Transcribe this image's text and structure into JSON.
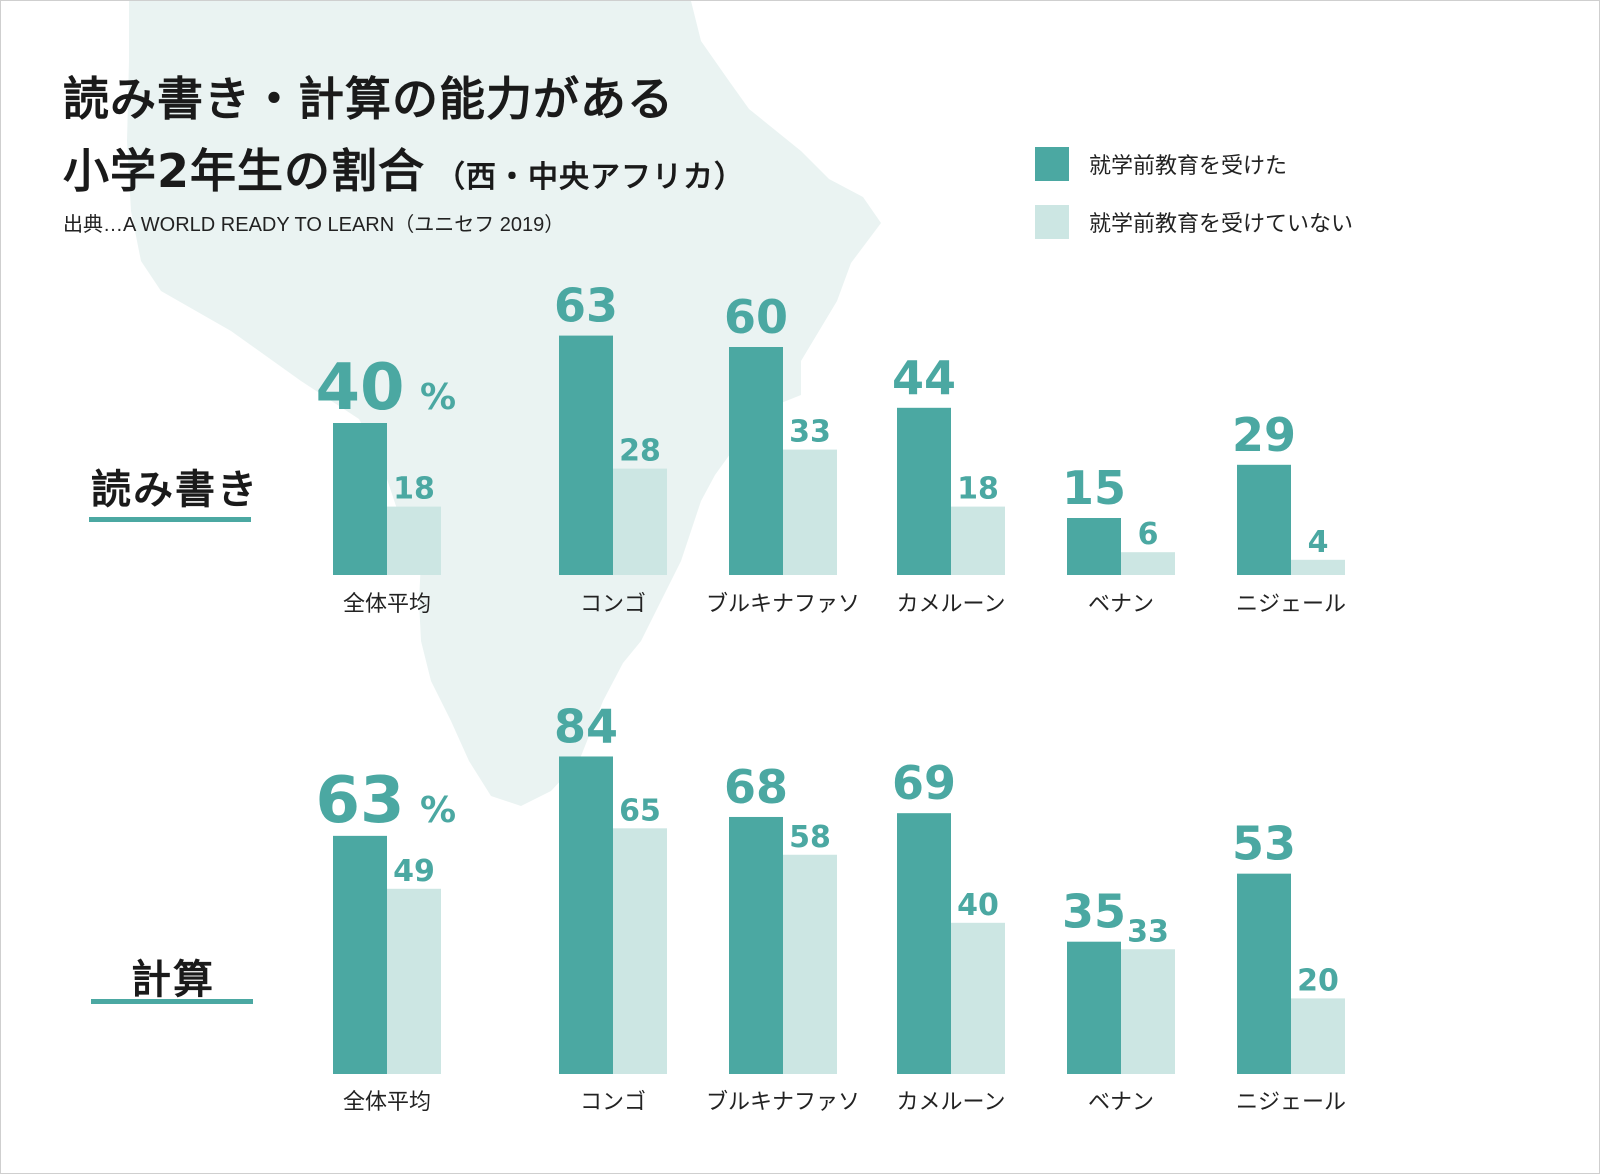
{
  "title": {
    "line1": "読み書き・計算の能力がある",
    "line2": "小学2年生の割合",
    "subtitle": "（西・中央アフリカ）"
  },
  "source": "出典…A WORLD READY TO LEARN（ユニセフ 2019）",
  "legend": [
    {
      "label": "就学前教育を受けた",
      "color": "#4ba8a2"
    },
    {
      "label": "就学前教育を受けていない",
      "color": "#cce6e3"
    }
  ],
  "percent_sign": "%",
  "chart_data": [
    {
      "type": "bar",
      "title": "読み書き",
      "categories": [
        "全体平均",
        "コンゴ",
        "ブルキナファソ",
        "カメルーン",
        "ベナン",
        "ニジェール"
      ],
      "series": [
        {
          "name": "就学前教育を受けた",
          "values": [
            40,
            63,
            60,
            44,
            15,
            29
          ]
        },
        {
          "name": "就学前教育を受けていない",
          "values": [
            18,
            28,
            33,
            18,
            6,
            4
          ]
        }
      ],
      "ylim": [
        0,
        100
      ],
      "unit": "%"
    },
    {
      "type": "bar",
      "title": "計算",
      "categories": [
        "全体平均",
        "コンゴ",
        "ブルキナファソ",
        "カメルーン",
        "ベナン",
        "ニジェール"
      ],
      "series": [
        {
          "name": "就学前教育を受けた",
          "values": [
            63,
            84,
            68,
            69,
            35,
            53
          ]
        },
        {
          "name": "就学前教育を受けていない",
          "values": [
            49,
            65,
            58,
            40,
            33,
            20
          ]
        }
      ],
      "ylim": [
        0,
        100
      ],
      "unit": "%"
    }
  ],
  "colors": {
    "dark": "#4ba8a2",
    "light": "#cce6e3",
    "map": "#eaf3f2"
  }
}
